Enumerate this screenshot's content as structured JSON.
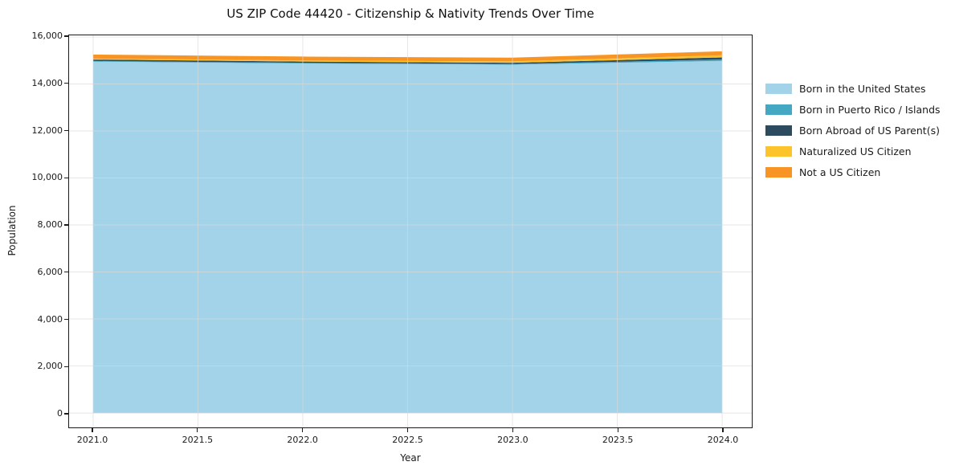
{
  "title": "US ZIP Code 44420 - Citizenship & Nativity Trends Over Time",
  "chart_data": {
    "type": "area",
    "stacked": true,
    "title": "US ZIP Code 44420 - Citizenship & Nativity Trends Over Time",
    "xlabel": "Year",
    "ylabel": "Population",
    "x": [
      2021,
      2022,
      2023,
      2024
    ],
    "series": [
      {
        "name": "Born in the United States",
        "color": "#A3D3E8",
        "values": [
          14950,
          14870,
          14820,
          14980
        ]
      },
      {
        "name": "Born in Puerto Rico / Islands",
        "color": "#45A8C2",
        "values": [
          30,
          30,
          30,
          60
        ]
      },
      {
        "name": "Born Abroad of US Parent(s)",
        "color": "#2D4B5F",
        "values": [
          60,
          55,
          50,
          90
        ]
      },
      {
        "name": "Naturalized US Citizen",
        "color": "#FDC32B",
        "values": [
          40,
          45,
          60,
          90
        ]
      },
      {
        "name": "Not a US Citizen",
        "color": "#F79423",
        "values": [
          170,
          165,
          160,
          170
        ]
      }
    ],
    "x_ticks": [
      "2021.0",
      "2021.5",
      "2022.0",
      "2022.5",
      "2023.0",
      "2023.5",
      "2024.0"
    ],
    "y_ticks": [
      "0",
      "2,000",
      "4,000",
      "6,000",
      "8,000",
      "10,000",
      "12,000",
      "14,000",
      "16,000"
    ],
    "xlim": [
      2020.885,
      2024.135
    ],
    "ylim": [
      0,
      16000
    ],
    "grid": true,
    "grid_color": "#d9d9d9",
    "legend_position": "right of plot, frameless",
    "spine_color": "#1a1a1a",
    "background_color": "#ffffff"
  }
}
